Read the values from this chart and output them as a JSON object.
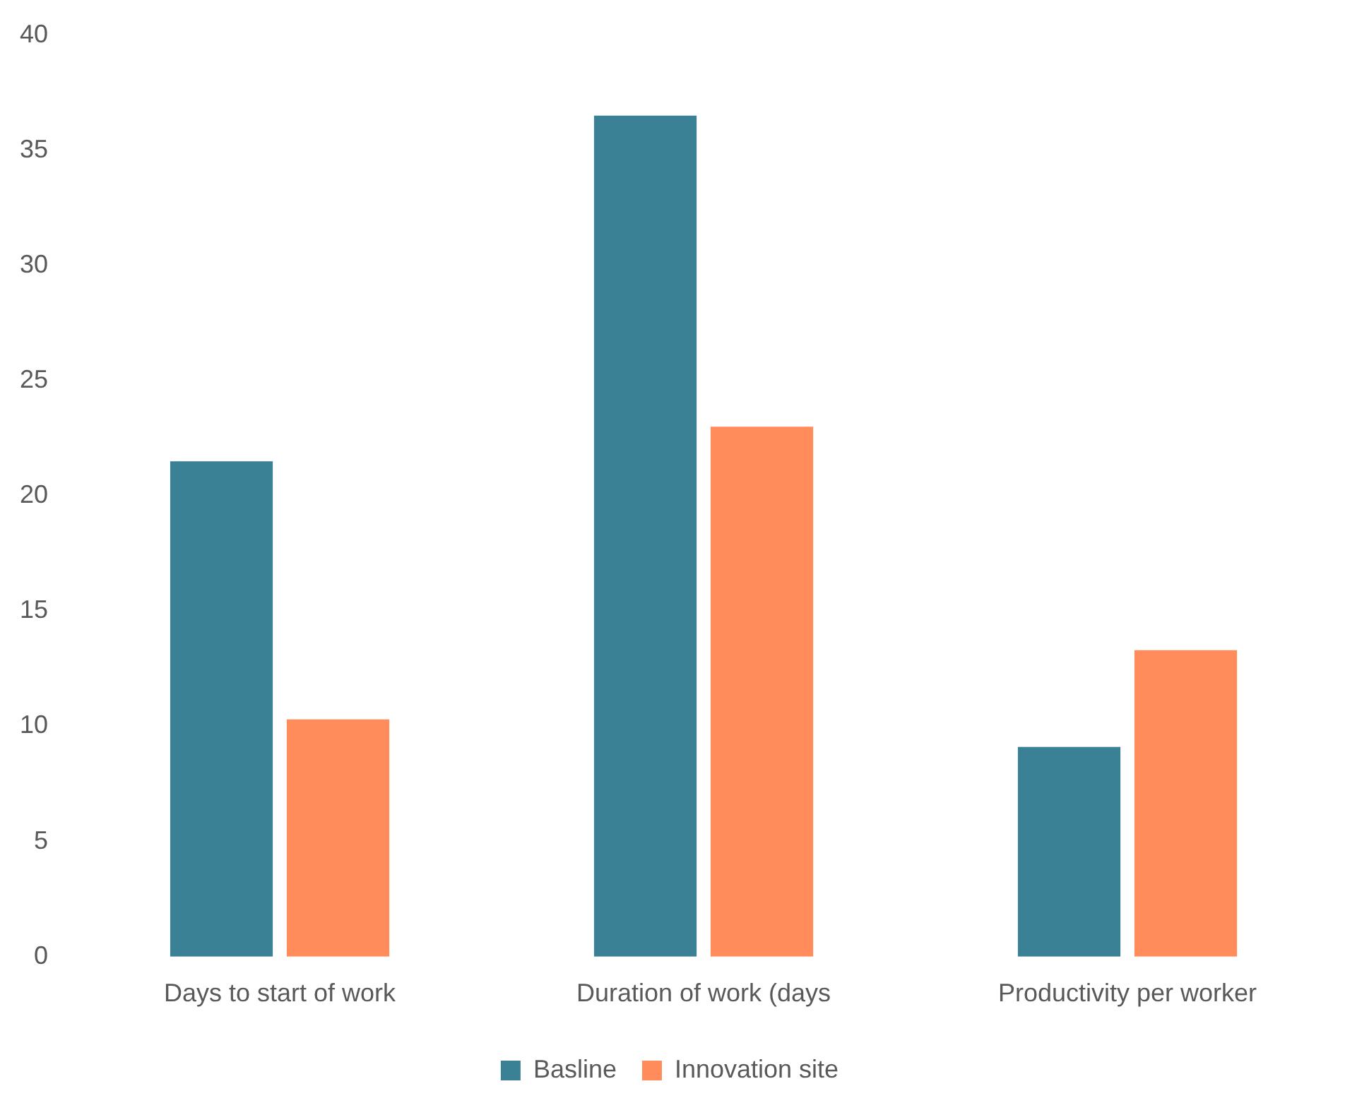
{
  "chart_data": {
    "type": "bar",
    "categories": [
      "Days to start of work",
      "Duration of work (days",
      "Productivity per worker"
    ],
    "series": [
      {
        "name": "Basline",
        "color": "#3a8196",
        "values": [
          21.5,
          36.5,
          9.1
        ]
      },
      {
        "name": "Innovation site",
        "color": "#ff8c5a",
        "values": [
          10.3,
          23.0,
          13.3
        ]
      }
    ],
    "ylim": [
      0,
      40
    ],
    "yticks": [
      0,
      5,
      10,
      15,
      20,
      25,
      30,
      35,
      40
    ],
    "grid": false,
    "legend": "bottom"
  }
}
